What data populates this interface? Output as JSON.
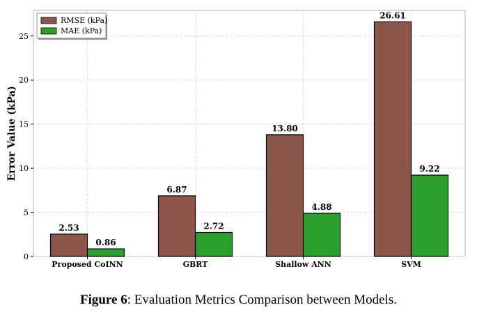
{
  "chart_data": {
    "type": "bar",
    "categories": [
      "Proposed CoINN",
      "GBRT",
      "Shallow ANN",
      "SVM"
    ],
    "series": [
      {
        "name": "RMSE (kPa)",
        "color": "#8c564b",
        "values": [
          2.53,
          6.87,
          13.8,
          26.61
        ],
        "labels": [
          "2.53",
          "6.87",
          "13.80",
          "26.61"
        ]
      },
      {
        "name": "MAE (kPa)",
        "color": "#2ca02c",
        "values": [
          0.86,
          2.72,
          4.88,
          9.22
        ],
        "labels": [
          "0.86",
          "2.72",
          "4.88",
          "9.22"
        ]
      }
    ],
    "ylabel": "Error Value (kPa)",
    "xlabel": "",
    "ylim": [
      0,
      27.9
    ],
    "yticks": [
      0,
      5,
      10,
      15,
      20,
      25
    ],
    "grid": true,
    "legend_position": "top-left"
  },
  "caption": {
    "prefix": "Figure 6",
    "text": ": Evaluation Metrics Comparison between Models."
  }
}
